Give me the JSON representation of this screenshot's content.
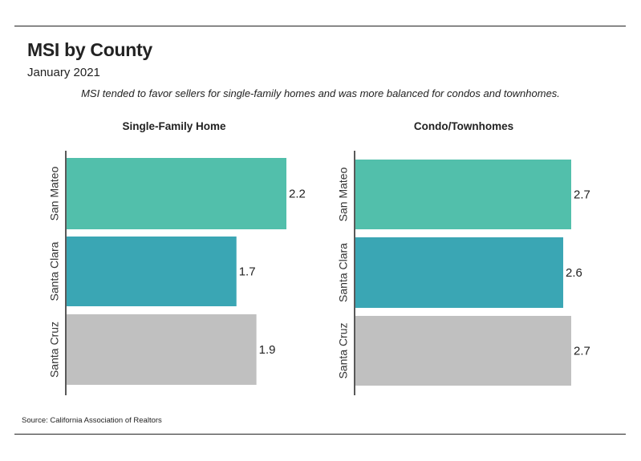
{
  "header": {
    "title": "MSI by County",
    "subtitle": "January 2021",
    "note": "MSI tended to favor sellers for single-family homes and was more balanced for condos and townhomes."
  },
  "footer": {
    "source": "Source:  California Association of Realtors"
  },
  "colors": {
    "san_mateo": "#52bfab",
    "santa_clara": "#3aa6b4",
    "santa_cruz": "#c0c0c0",
    "axis": "#222222"
  },
  "chart_data": [
    {
      "type": "bar",
      "orientation": "horizontal",
      "title": "Single-Family Home",
      "categories": [
        "San Mateo",
        "Santa Clara",
        "Santa Cruz"
      ],
      "values": [
        2.2,
        1.7,
        1.9
      ],
      "value_labels": [
        "2.2",
        "1.7",
        "1.9"
      ],
      "xlim": [
        0,
        2.2
      ],
      "grid": false,
      "legend": "none"
    },
    {
      "type": "bar",
      "orientation": "horizontal",
      "title": "Condo/Townhomes",
      "categories": [
        "San Mateo",
        "Santa Clara",
        "Santa Cruz"
      ],
      "values": [
        2.7,
        2.6,
        2.7
      ],
      "value_labels": [
        "2.7",
        "2.6",
        "2.7"
      ],
      "xlim": [
        0,
        2.7
      ],
      "grid": false,
      "legend": "none"
    }
  ]
}
